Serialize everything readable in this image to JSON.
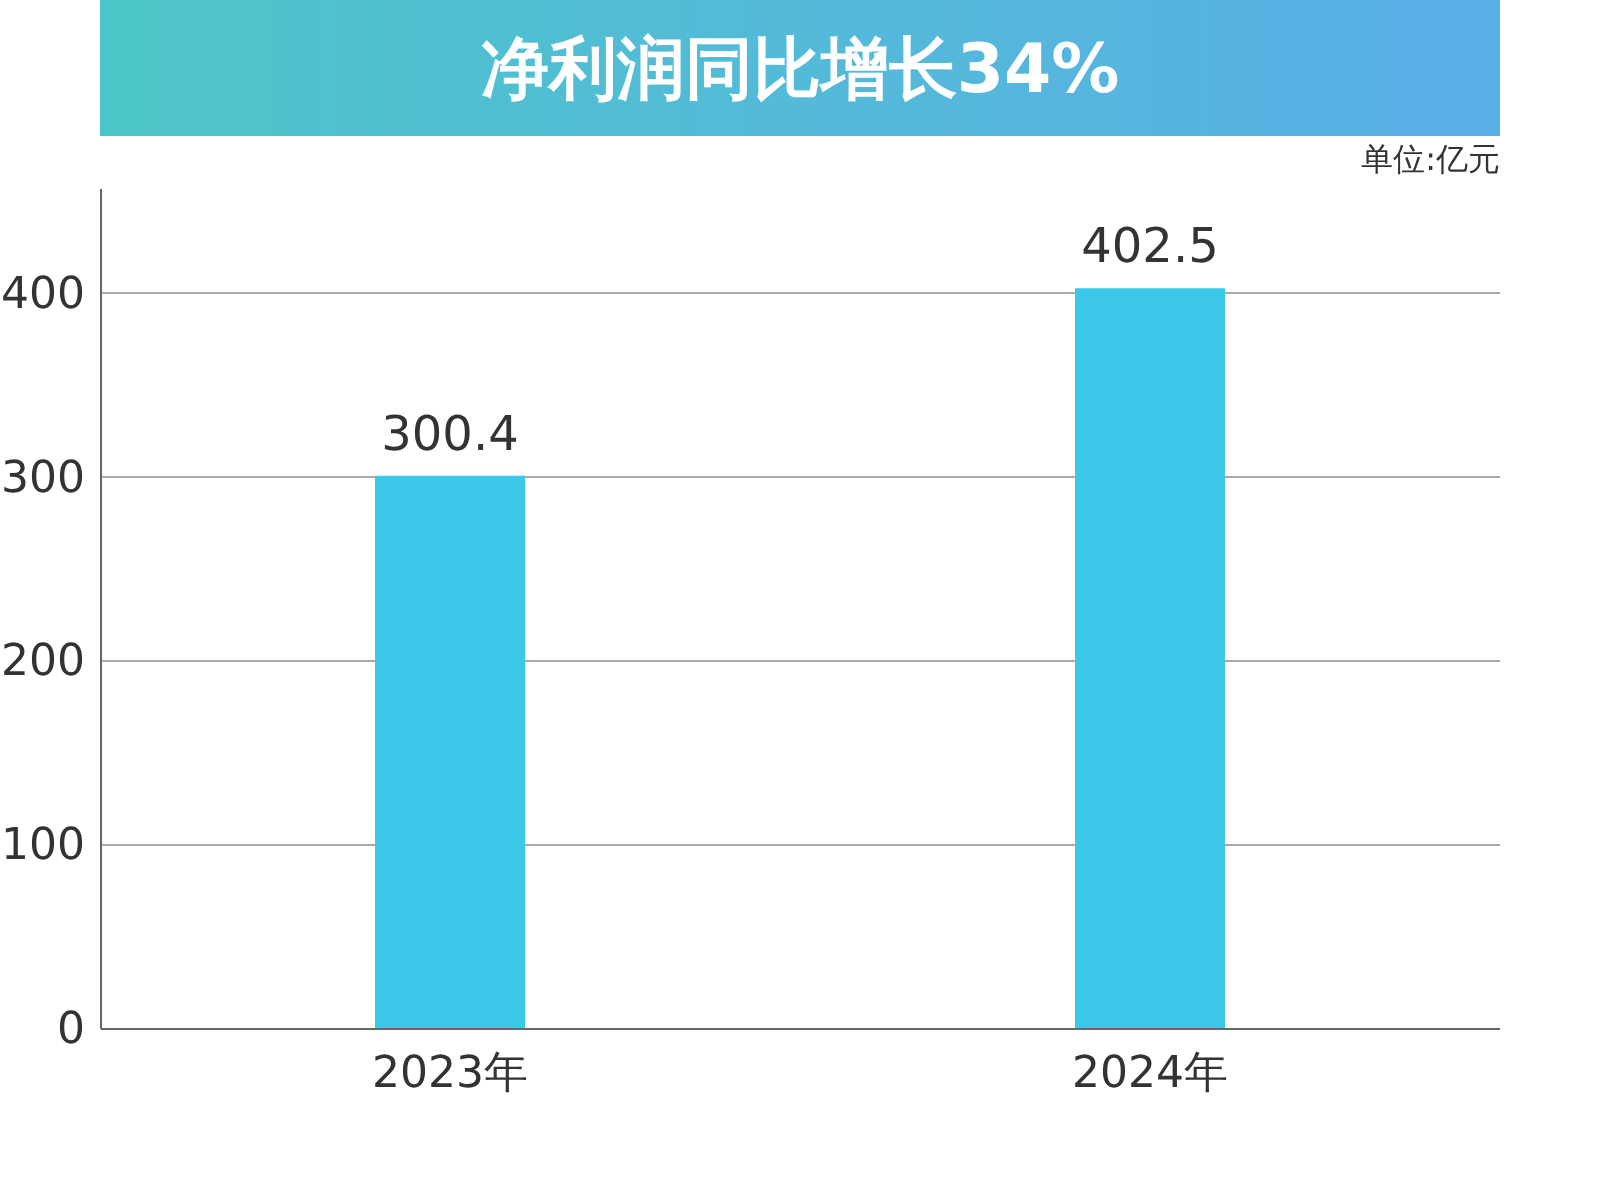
{
  "chart_data": {
    "type": "bar",
    "title": "净利润同比增长34%",
    "annotations": [
      "单位:亿元"
    ],
    "categories": [
      "2023年",
      "2024年"
    ],
    "series": [
      {
        "color": "#3cc8e8",
        "values": [
          300.4,
          402.5
        ]
      }
    ],
    "data_labels": true,
    "ylim": [
      0,
      457
    ],
    "yticks": [
      0,
      100,
      200,
      300,
      400
    ],
    "grid": "y",
    "legend": false
  }
}
